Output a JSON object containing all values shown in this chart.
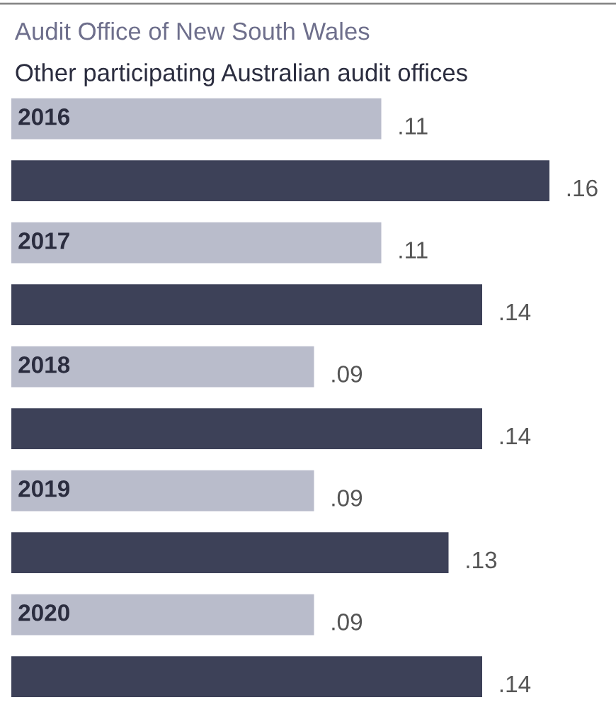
{
  "chart_data": {
    "type": "bar",
    "orientation": "horizontal",
    "categories": [
      "2016",
      "2017",
      "2018",
      "2019",
      "2020"
    ],
    "series": [
      {
        "name": "Audit Office of New South Wales",
        "color": "#b9bccb",
        "values": [
          0.11,
          0.11,
          0.09,
          0.09,
          0.09
        ],
        "value_labels": [
          ".11",
          ".11",
          ".09",
          ".09",
          ".09"
        ]
      },
      {
        "name": "Other participating Australian audit offices",
        "color": "#3d4158",
        "values": [
          0.16,
          0.14,
          0.14,
          0.13,
          0.14
        ],
        "value_labels": [
          ".16",
          ".14",
          ".14",
          ".13",
          ".14"
        ]
      }
    ],
    "legend": "top left"
  }
}
